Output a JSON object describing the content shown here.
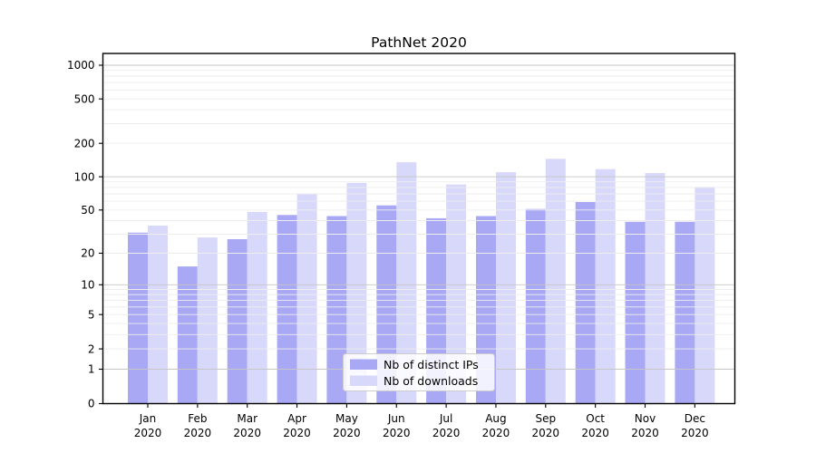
{
  "chart_data": {
    "type": "bar",
    "title": "PathNet 2020",
    "months": [
      "Jan",
      "Feb",
      "Mar",
      "Apr",
      "May",
      "Jun",
      "Jul",
      "Aug",
      "Sep",
      "Oct",
      "Nov",
      "Dec"
    ],
    "year": "2020",
    "series": [
      {
        "name": "Nb of distinct IPs",
        "color": "#a8a8f4",
        "values": [
          31,
          15,
          27,
          45,
          44,
          55,
          42,
          44,
          51,
          59,
          39,
          39
        ]
      },
      {
        "name": "Nb of downloads",
        "color": "#d8d8fa",
        "values": [
          36,
          28,
          48,
          70,
          88,
          135,
          85,
          110,
          145,
          117,
          108,
          81
        ]
      }
    ],
    "yscale": "symlog",
    "ylim": [
      0,
      1300
    ],
    "yticks": [
      0,
      1,
      2,
      5,
      10,
      20,
      50,
      100,
      200,
      500,
      1000
    ],
    "grid": "horizontal, minor and major, drawn above bars",
    "legend_position": "lower center"
  },
  "colors": {
    "grid_major": "#c6c6c6",
    "grid_minor": "#ededed",
    "spine": "#000000",
    "tick": "#000000",
    "legend_border": "#cccccc",
    "legend_bg": "#ffffff"
  }
}
